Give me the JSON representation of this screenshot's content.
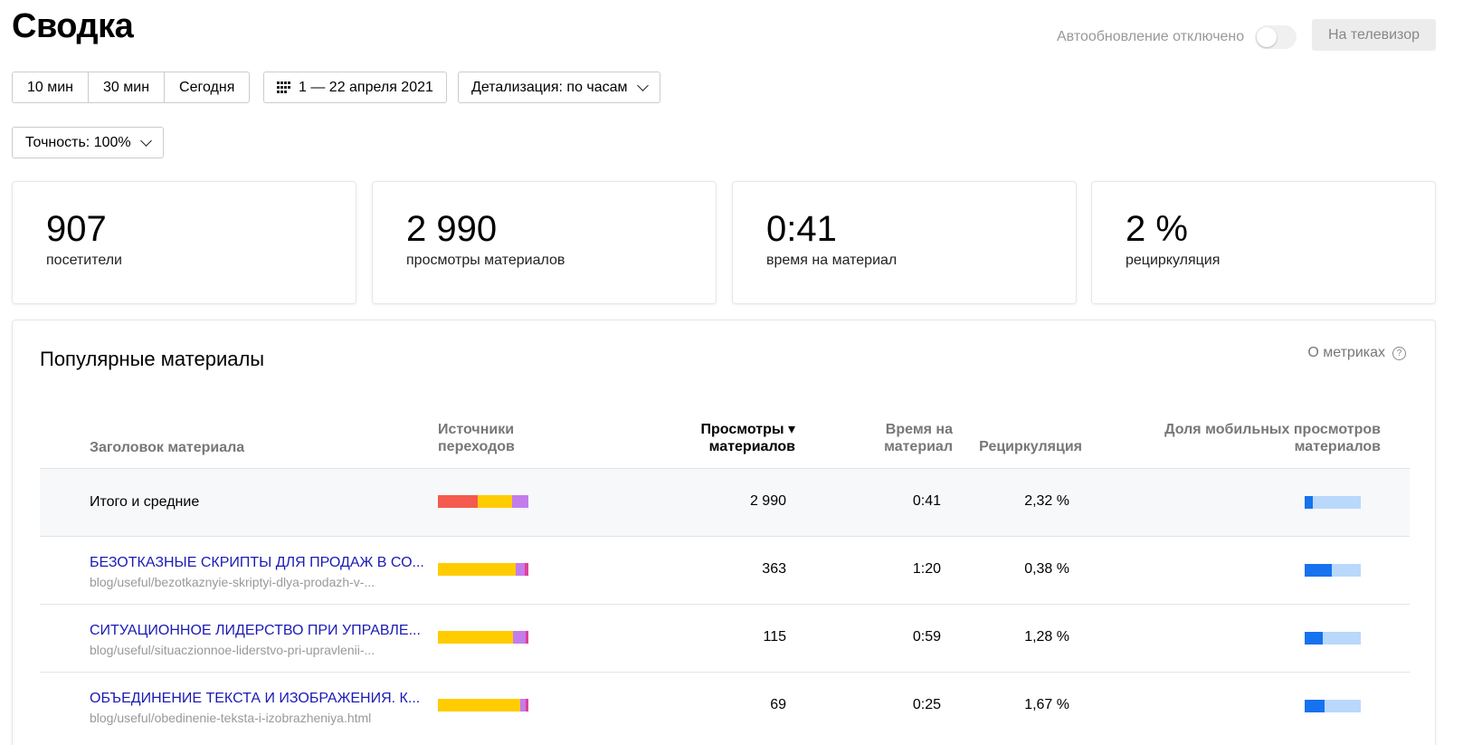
{
  "page": {
    "title": "Сводка"
  },
  "header": {
    "autoupdate_label": "Автообновление отключено",
    "tv_button": "На телевизор"
  },
  "filters": {
    "ranges": [
      "10 мин",
      "30 мин",
      "Сегодня"
    ],
    "date_range": "1 — 22 апреля 2021",
    "detail": "Детализация: по часам",
    "accuracy": "Точность: 100%"
  },
  "kpis": [
    {
      "value": "907",
      "label": "посетители"
    },
    {
      "value": "2 990",
      "label": "просмотры материалов"
    },
    {
      "value": "0:41",
      "label": "время на материал"
    },
    {
      "value": "2 %",
      "label": "рециркуляция"
    }
  ],
  "popular": {
    "title": "Популярные материалы",
    "about": "О метриках",
    "help_glyph": "?",
    "columns": {
      "title": "Заголовок материала",
      "sources_1": "Источники",
      "sources_2": "переходов",
      "views_1": "Просмотры ▾",
      "views_2": "материалов",
      "time_1": "Время на",
      "time_2": "материал",
      "recirc": "Рециркуляция",
      "mobile_1": "Доля мобильных просмотров",
      "mobile_2": "материалов"
    },
    "source_colors": [
      "#f55a4e",
      "#ffcc00",
      "#c27dec",
      "#e0409a"
    ],
    "rows": [
      {
        "title": "Итого и средние",
        "url": "",
        "views": "2 990",
        "time": "0:41",
        "recirc": "2,32 %",
        "sources": [
          44,
          38,
          18,
          0
        ],
        "mobile_share": 0.15
      },
      {
        "title": "БЕЗОТКАЗНЫЕ СКРИПТЫ ДЛЯ ПРОДАЖ В СО...",
        "url": "blog/useful/bezotkaznyie-skriptyi-dlya-prodazh-v-...",
        "views": "363",
        "time": "1:20",
        "recirc": "0,38 %",
        "sources": [
          0,
          86,
          10,
          4
        ],
        "mobile_share": 0.48
      },
      {
        "title": "СИТУАЦИОННОЕ ЛИДЕРСТВО ПРИ УПРАВЛЕ...",
        "url": "blog/useful/situaczionnoe-liderstvo-pri-upravlenii-...",
        "views": "115",
        "time": "0:59",
        "recirc": "1,28 %",
        "sources": [
          0,
          83,
          14,
          3
        ],
        "mobile_share": 0.32
      },
      {
        "title": "ОБЪЕДИНЕНИЕ ТЕКСТА И ИЗОБРАЖЕНИЯ. К...",
        "url": "blog/useful/obedinenie-teksta-i-izobrazheniya.html",
        "views": "69",
        "time": "0:25",
        "recirc": "1,67 %",
        "sources": [
          0,
          91,
          6,
          3
        ],
        "mobile_share": 0.35
      }
    ]
  }
}
